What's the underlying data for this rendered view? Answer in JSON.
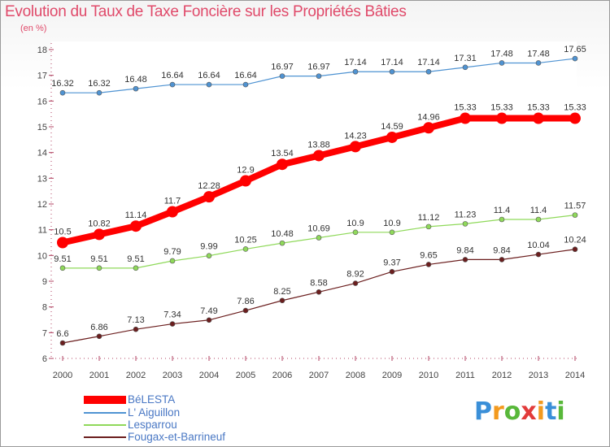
{
  "title": "Evolution du Taux de Taxe Foncière sur les Propriétés Bâties",
  "unit": "(en %)",
  "logo": {
    "letters": [
      "P",
      "r",
      "o",
      "x",
      "i",
      "t",
      "i"
    ],
    "colors": [
      "#3a8fd8",
      "#f39a1e",
      "#58b83a",
      "#e23b3b",
      "#f39a1e",
      "#3a8fd8",
      "#58b83a"
    ]
  },
  "chart_data": {
    "type": "line",
    "title": "Evolution du Taux de Taxe Foncière sur les Propriétés Bâties",
    "ylabel": "(en %)",
    "xlabel": "",
    "x": [
      2000,
      2001,
      2002,
      2003,
      2004,
      2005,
      2006,
      2007,
      2008,
      2009,
      2010,
      2011,
      2012,
      2013,
      2014
    ],
    "ylim": [
      6,
      18
    ],
    "yticks": [
      6,
      7,
      8,
      9,
      10,
      11,
      12,
      13,
      14,
      15,
      16,
      17,
      18
    ],
    "grid": false,
    "legend_position": "bottom-left",
    "series": [
      {
        "name": "BéLESTA",
        "color": "#ff0000",
        "labels": [
          "10.5",
          "10.82",
          "11.14",
          "11.7",
          "12.28",
          "12.9",
          "13.54",
          "13.88",
          "14.23",
          "14.59",
          "14.96",
          "15.33",
          "15.33",
          "15.33",
          "15.33"
        ],
        "values": [
          10.5,
          10.82,
          11.14,
          11.7,
          12.28,
          12.9,
          13.54,
          13.88,
          14.23,
          14.59,
          14.96,
          15.33,
          15.33,
          15.33,
          15.33
        ]
      },
      {
        "name": "L' Aiguillon",
        "color": "#4f93d2",
        "labels": [
          "16.32",
          "16.32",
          "16.48",
          "16.64",
          "16.64",
          "16.64",
          "16.97",
          "16.97",
          "17.14",
          "17.14",
          "17.14",
          "17.31",
          "17.48",
          "17.48",
          "17.65"
        ],
        "values": [
          16.32,
          16.32,
          16.48,
          16.64,
          16.64,
          16.64,
          16.97,
          16.97,
          17.14,
          17.14,
          17.14,
          17.31,
          17.48,
          17.48,
          17.65
        ]
      },
      {
        "name": "Lesparrou",
        "color": "#8fd95a",
        "labels": [
          "9.51",
          "9.51",
          "9.51",
          "9.79",
          "9.99",
          "10.25",
          "10.48",
          "10.69",
          "10.9",
          "10.9",
          "11.12",
          "11.23",
          "11.4",
          "11.4",
          "11.57"
        ],
        "values": [
          9.51,
          9.51,
          9.51,
          9.79,
          9.99,
          10.25,
          10.48,
          10.69,
          10.9,
          10.9,
          11.12,
          11.23,
          11.4,
          11.4,
          11.57
        ]
      },
      {
        "name": "Fougax-et-Barrineuf",
        "color": "#6b1e1e",
        "labels": [
          "6.6",
          "6.86",
          "7.13",
          "7.34",
          "7.49",
          "7.86",
          "8.25",
          "8.58",
          "8.92",
          "9.37",
          "9.65",
          "9.84",
          "9.84",
          "10.04",
          "10.24"
        ],
        "values": [
          6.6,
          6.86,
          7.13,
          7.34,
          7.49,
          7.86,
          8.25,
          8.58,
          8.92,
          9.37,
          9.65,
          9.84,
          9.84,
          10.04,
          10.24
        ]
      }
    ]
  }
}
